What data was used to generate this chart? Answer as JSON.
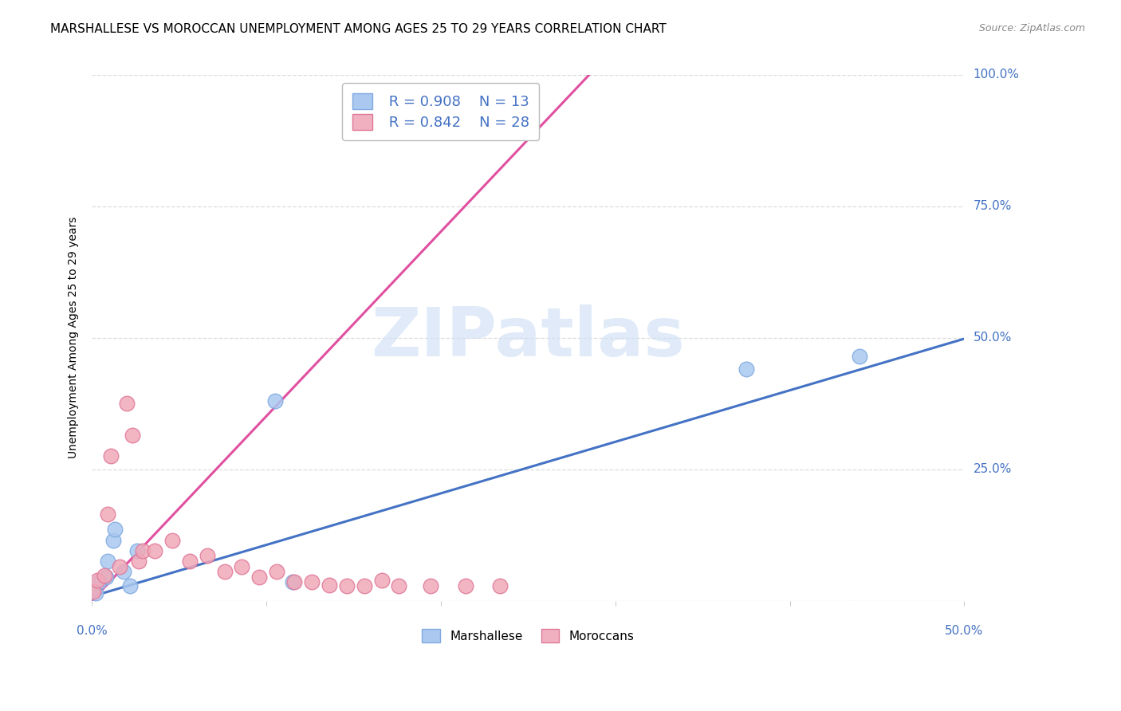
{
  "title": "MARSHALLESE VS MOROCCAN UNEMPLOYMENT AMONG AGES 25 TO 29 YEARS CORRELATION CHART",
  "source": "Source: ZipAtlas.com",
  "ylabel": "Unemployment Among Ages 25 to 29 years",
  "xlim": [
    0.0,
    0.5
  ],
  "ylim": [
    0.0,
    1.0
  ],
  "xticks": [
    0.0,
    0.1,
    0.2,
    0.3,
    0.4,
    0.5
  ],
  "yticks": [
    0.0,
    0.25,
    0.5,
    0.75,
    1.0
  ],
  "xticklabels_left": "0.0%",
  "xticklabels_right": "50.0%",
  "yticklabels_right": [
    "100.0%",
    "75.0%",
    "50.0%",
    "25.0%"
  ],
  "ytick_right_vals": [
    1.0,
    0.75,
    0.5,
    0.25
  ],
  "marshallese_x": [
    0.002,
    0.008,
    0.012,
    0.009,
    0.004,
    0.013,
    0.018,
    0.022,
    0.026,
    0.105,
    0.115,
    0.375,
    0.44
  ],
  "marshallese_y": [
    0.015,
    0.045,
    0.115,
    0.075,
    0.035,
    0.135,
    0.055,
    0.028,
    0.095,
    0.38,
    0.035,
    0.44,
    0.465
  ],
  "moroccan_x": [
    0.001,
    0.003,
    0.007,
    0.009,
    0.011,
    0.016,
    0.02,
    0.023,
    0.027,
    0.029,
    0.036,
    0.046,
    0.056,
    0.066,
    0.076,
    0.086,
    0.096,
    0.106,
    0.116,
    0.126,
    0.136,
    0.146,
    0.156,
    0.166,
    0.176,
    0.194,
    0.214,
    0.234
  ],
  "moroccan_y": [
    0.018,
    0.038,
    0.048,
    0.165,
    0.275,
    0.065,
    0.375,
    0.315,
    0.075,
    0.095,
    0.095,
    0.115,
    0.075,
    0.085,
    0.055,
    0.065,
    0.045,
    0.055,
    0.035,
    0.035,
    0.03,
    0.028,
    0.028,
    0.038,
    0.028,
    0.028,
    0.028,
    0.028
  ],
  "blue_line_x": [
    0.0,
    0.5
  ],
  "blue_line_y": [
    0.008,
    0.498
  ],
  "pink_line_x": [
    0.0,
    0.285
  ],
  "pink_line_y": [
    0.0,
    1.0
  ],
  "marshallese_color": "#aac8f0",
  "marshallese_edge": "#80aae0",
  "moroccan_color": "#f0a8b8",
  "moroccan_edge": "#e07898",
  "blue_line_color": "#4472c4",
  "pink_line_color": "#e050a0",
  "legend_blue_color": "#aac8f0",
  "legend_blue_edge": "#80aae0",
  "legend_pink_color": "#f0b0c0",
  "legend_pink_edge": "#e07898",
  "R_marshallese": "0.908",
  "N_marshallese": "13",
  "R_moroccan": "0.842",
  "N_moroccan": "28",
  "watermark_text": "ZIPatlas",
  "watermark_color": "#d0e0f5",
  "grid_color": "#dddddd",
  "title_fontsize": 11,
  "axis_label_fontsize": 10,
  "tick_fontsize": 11,
  "source_fontsize": 9,
  "legend_fontsize": 13,
  "scatter_size": 180
}
